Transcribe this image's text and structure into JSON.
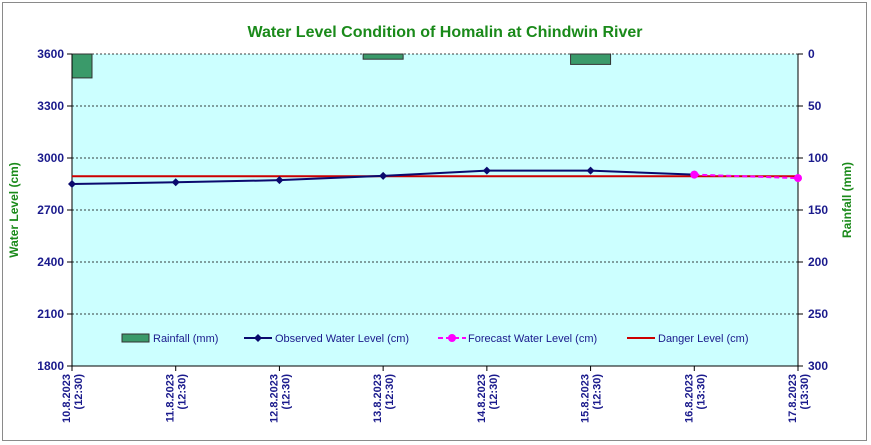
{
  "chart_data": {
    "type": "line",
    "title": "Water Level Condition of Homalin at Chindwin River",
    "ylabel": "Water Level (cm)",
    "y2label": "Rainfall (mm)",
    "ylim": [
      1800,
      3600
    ],
    "yticks": [
      1800,
      2100,
      2400,
      2700,
      3000,
      3300,
      3600
    ],
    "y2lim": [
      0,
      300
    ],
    "y2ticks": [
      0,
      50,
      100,
      150,
      200,
      250,
      300
    ],
    "y2_reversed": true,
    "categories": [
      {
        "date": "10.8.2023",
        "time": "(12:30)"
      },
      {
        "date": "11.8.2023",
        "time": "(12:30)"
      },
      {
        "date": "12.8.2023",
        "time": "(12:30)"
      },
      {
        "date": "13.8.2023",
        "time": "(12:30)"
      },
      {
        "date": "14.8.2023",
        "time": "(12:30)"
      },
      {
        "date": "15.8.2023",
        "time": "(12:30)"
      },
      {
        "date": "16.8.2023",
        "time": "(13:30)"
      },
      {
        "date": "17.8.2023",
        "time": "(13:30)"
      }
    ],
    "rainfall_mm": [
      23,
      0,
      0,
      5,
      0,
      10,
      0,
      0
    ],
    "observed_cm": [
      2850,
      2860,
      2872,
      2897,
      2927,
      2927,
      2904,
      null
    ],
    "forecast_cm": [
      null,
      null,
      null,
      null,
      null,
      null,
      2904,
      2884
    ],
    "danger_cm": 2895,
    "legend": {
      "rainfall": "Rainfall (mm)",
      "observed": "Observed Water Level (cm)",
      "forecast": "Forecast Water Level (cm)",
      "danger": "Danger Level (cm)"
    },
    "legend_placement": "bottom-inside",
    "grid": true,
    "colors": {
      "plot_bg": "#ccffff",
      "rainfall": "#3a9a6a",
      "observed": "#0a0a6e",
      "forecast": "#ff00ff",
      "danger": "#cc0000",
      "title": "#1a8a1a",
      "tick": "#1a1a8c"
    }
  }
}
